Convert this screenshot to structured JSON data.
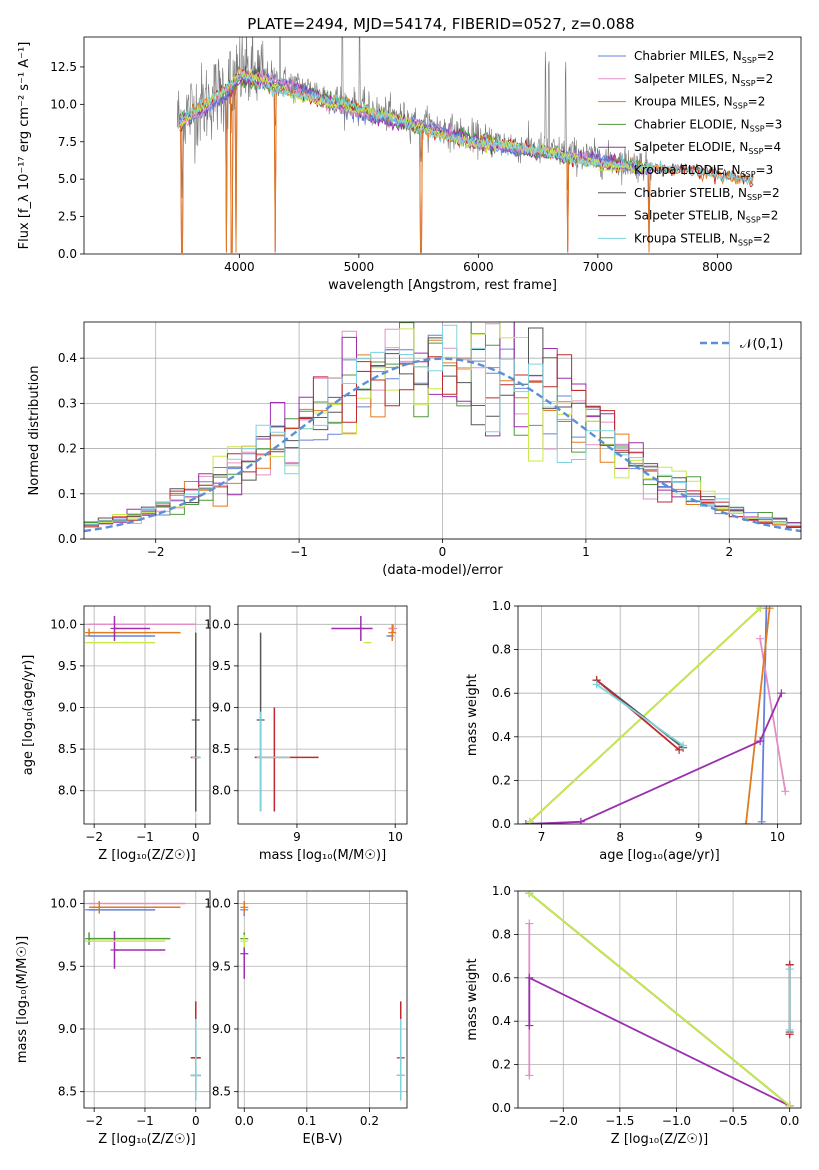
{
  "figure_title": "PLATE=2494, MJD=54174, FIBERID=0527, z=0.088",
  "models": [
    {
      "name": "Chabrier MILES",
      "nssp": "2",
      "color": "#6482db"
    },
    {
      "name": "Salpeter MILES",
      "nssp": "2",
      "color": "#e38fc5"
    },
    {
      "name": "Kroupa MILES",
      "nssp": "2",
      "color": "#e07b20"
    },
    {
      "name": "Chabrier ELODIE",
      "nssp": "3",
      "color": "#4f9a3f"
    },
    {
      "name": "Salpeter ELODIE",
      "nssp": "4",
      "color": "#9b2fae"
    },
    {
      "name": "Kroupa ELODIE",
      "nssp": "3",
      "color": "#c9e84a"
    },
    {
      "name": "Chabrier STELIB",
      "nssp": "2",
      "color": "#555555"
    },
    {
      "name": "Salpeter STELIB",
      "nssp": "2",
      "color": "#c0282d"
    },
    {
      "name": "Kroupa STELIB",
      "nssp": "2",
      "color": "#7ed3de"
    }
  ],
  "chart_data": [
    {
      "id": "spectrum",
      "type": "line",
      "xlabel": "wavelength [Angstrom, rest frame]",
      "ylabel": "Flux [f_λ 10⁻¹⁷ erg cm⁻² s⁻¹ A⁻¹]",
      "xlim": [
        2700,
        8700
      ],
      "ylim": [
        0,
        14.5
      ],
      "xticks": [
        4000,
        5000,
        6000,
        7000,
        8000
      ],
      "yticks": [
        0.0,
        2.5,
        5.0,
        7.5,
        10.0,
        12.5
      ],
      "grid": false,
      "legend": "upper-right",
      "continuum": [
        [
          3480,
          8.9
        ],
        [
          3600,
          9.6
        ],
        [
          3700,
          10.0
        ],
        [
          3800,
          10.6
        ],
        [
          3900,
          11.2
        ],
        [
          4000,
          12.2
        ],
        [
          4200,
          11.9
        ],
        [
          4500,
          11.2
        ],
        [
          4800,
          10.4
        ],
        [
          5000,
          9.8
        ],
        [
          5500,
          8.8
        ],
        [
          6000,
          7.7
        ],
        [
          6500,
          7.0
        ],
        [
          7000,
          6.4
        ],
        [
          7500,
          5.8
        ],
        [
          8000,
          5.5
        ],
        [
          8300,
          5.2
        ]
      ],
      "absorption_lines": [
        3520,
        3890,
        3935,
        3970,
        4300,
        5520,
        6750,
        7430
      ],
      "emission_lines": [
        4340,
        4861,
        5007,
        6563,
        6590,
        6730
      ]
    },
    {
      "id": "residuals",
      "type": "histogram",
      "xlabel": "(data-model)/error",
      "ylabel": "Normed distribution",
      "xlim": [
        -2.5,
        2.5
      ],
      "ylim": [
        0,
        0.48
      ],
      "xticks": [
        -2,
        -1,
        0,
        1,
        2
      ],
      "yticks": [
        0.0,
        0.1,
        0.2,
        0.3,
        0.4
      ],
      "grid": true,
      "legend": "upper-right",
      "reference_label": "𝒩(0,1)",
      "bin_width": 0.1
    },
    {
      "id": "age-vs-Z",
      "type": "errorbar",
      "xlabel": "Z [log₁₀(Z/Z☉)]",
      "ylabel": "age  [log₁₀(age/yr)]",
      "xlim": [
        -2.2,
        0.28
      ],
      "ylim": [
        7.6,
        10.22
      ],
      "xticks": [
        -2,
        -1,
        0
      ],
      "yticks": [
        8.0,
        8.5,
        9.0,
        9.5,
        10.0
      ],
      "grid": true,
      "points": [
        {
          "model": 0,
          "x": -2.1,
          "y": 9.86,
          "xerr": [
            0,
            1.3
          ],
          "yerr": [
            0,
            0
          ]
        },
        {
          "model": 1,
          "x": -2.1,
          "y": 10.0,
          "xerr": [
            0,
            2.1
          ],
          "yerr": [
            0,
            0
          ]
        },
        {
          "model": 2,
          "x": -2.1,
          "y": 9.9,
          "xerr": [
            0,
            1.8
          ],
          "yerr": [
            0.05,
            0.05
          ]
        },
        {
          "model": 4,
          "x": -1.6,
          "y": 9.95,
          "xerr": [
            0,
            0.7
          ],
          "yerr": [
            0.15,
            0.15
          ]
        },
        {
          "model": 5,
          "x": -2.1,
          "y": 9.78,
          "xerr": [
            0,
            1.3
          ],
          "yerr": [
            0,
            0
          ]
        },
        {
          "model": 6,
          "x": 0.0,
          "y": 8.85,
          "xerr": [
            0,
            0
          ],
          "yerr": [
            1.1,
            1.05
          ]
        },
        {
          "model": 7,
          "x": 0.0,
          "y": 8.4,
          "xerr": [
            0.1,
            0.05
          ],
          "yerr": [
            0,
            0
          ]
        },
        {
          "model": 8,
          "x": 0.0,
          "y": 8.4,
          "xerr": [
            0,
            0.1
          ],
          "yerr": [
            0,
            0
          ]
        }
      ]
    },
    {
      "id": "age-vs-mass",
      "type": "errorbar",
      "xlabel": "mass [log₁₀(M/M☉)]",
      "ylabel": "",
      "xlim": [
        8.4,
        10.12
      ],
      "ylim": [
        7.6,
        10.22
      ],
      "xticks": [
        9,
        10
      ],
      "yticks": [
        8.0,
        8.5,
        9.0,
        9.5,
        10.0
      ],
      "grid": true,
      "points": [
        {
          "model": 0,
          "x": 9.95,
          "y": 9.86,
          "xerr": [
            0.02,
            0.02
          ],
          "yerr": [
            0,
            0
          ]
        },
        {
          "model": 1,
          "x": 9.98,
          "y": 9.95,
          "xerr": [
            0.05,
            0.02
          ],
          "yerr": [
            0.05,
            0.05
          ]
        },
        {
          "model": 2,
          "x": 9.97,
          "y": 9.9,
          "xerr": [
            0.02,
            0.02
          ],
          "yerr": [
            0.1,
            0.1
          ]
        },
        {
          "model": 4,
          "x": 9.65,
          "y": 9.95,
          "xerr": [
            0.3,
            0.12
          ],
          "yerr": [
            0.15,
            0.15
          ]
        },
        {
          "model": 5,
          "x": 9.72,
          "y": 9.78,
          "xerr": [
            0.02,
            0.02
          ],
          "yerr": [
            0,
            0
          ]
        },
        {
          "model": 6,
          "x": 8.63,
          "y": 8.85,
          "xerr": [
            0,
            0
          ],
          "yerr": [
            1.1,
            1.05
          ]
        },
        {
          "model": 7,
          "x": 8.77,
          "y": 8.4,
          "xerr": [
            0.2,
            0.45
          ],
          "yerr": [
            0.65,
            0.6
          ]
        },
        {
          "model": 8,
          "x": 8.63,
          "y": 8.4,
          "xerr": [
            0,
            0.3
          ],
          "yerr": [
            0.65,
            0.55
          ]
        }
      ]
    },
    {
      "id": "weight-vs-age",
      "type": "line",
      "xlabel": "age  [log₁₀(age/yr)]",
      "ylabel": "mass weight",
      "xlim": [
        6.7,
        10.3
      ],
      "ylim": [
        0,
        1.0
      ],
      "xticks": [
        7,
        8,
        9,
        10
      ],
      "yticks": [
        0.0,
        0.2,
        0.4,
        0.6,
        0.8,
        1.0
      ],
      "grid": true,
      "series": [
        {
          "model": 0,
          "points": [
            [
              9.8,
              0.01
            ],
            [
              9.86,
              0.99
            ]
          ]
        },
        {
          "model": 1,
          "points": [
            [
              9.78,
              0.85
            ],
            [
              10.1,
              0.15
            ]
          ]
        },
        {
          "model": 2,
          "points": [
            [
              9.6,
              0.0
            ],
            [
              9.9,
              0.99
            ]
          ]
        },
        {
          "model": 3,
          "points": [
            [
              6.85,
              0.01
            ],
            [
              9.78,
              0.99
            ]
          ]
        },
        {
          "model": 4,
          "points": [
            [
              6.8,
              0.0
            ],
            [
              7.5,
              0.01
            ],
            [
              9.78,
              0.38
            ],
            [
              10.05,
              0.6
            ]
          ]
        },
        {
          "model": 5,
          "points": [
            [
              6.85,
              0.01
            ],
            [
              9.78,
              0.99
            ]
          ]
        },
        {
          "model": 6,
          "points": [
            [
              7.7,
              0.66
            ],
            [
              8.8,
              0.35
            ]
          ]
        },
        {
          "model": 7,
          "points": [
            [
              7.7,
              0.66
            ],
            [
              8.75,
              0.34
            ]
          ]
        },
        {
          "model": 8,
          "points": [
            [
              7.7,
              0.64
            ],
            [
              8.8,
              0.36
            ]
          ]
        }
      ]
    },
    {
      "id": "mass-vs-Z",
      "type": "errorbar",
      "xlabel": "Z [log₁₀(Z/Z☉)]",
      "ylabel": "mass [log₁₀(M/M☉)]",
      "xlim": [
        -2.2,
        0.28
      ],
      "ylim": [
        8.37,
        10.1
      ],
      "xticks": [
        -2,
        -1,
        0
      ],
      "yticks": [
        8.5,
        9.0,
        9.5,
        10.0
      ],
      "grid": true,
      "points": [
        {
          "model": 0,
          "x": -2.1,
          "y": 9.95,
          "xerr": [
            0,
            1.3
          ],
          "yerr": [
            0,
            0
          ]
        },
        {
          "model": 1,
          "x": -2.1,
          "y": 10.0,
          "xerr": [
            0,
            1.9
          ],
          "yerr": [
            0,
            0
          ]
        },
        {
          "model": 2,
          "x": -1.9,
          "y": 9.97,
          "xerr": [
            0.2,
            1.6
          ],
          "yerr": [
            0.05,
            0.05
          ]
        },
        {
          "model": 3,
          "x": -2.1,
          "y": 9.72,
          "xerr": [
            0,
            1.6
          ],
          "yerr": [
            0.05,
            0.05
          ]
        },
        {
          "model": 4,
          "x": -1.6,
          "y": 9.63,
          "xerr": [
            0,
            1.0
          ],
          "yerr": [
            0.15,
            0.15
          ]
        },
        {
          "model": 5,
          "x": -2.1,
          "y": 9.7,
          "xerr": [
            0,
            1.5
          ],
          "yerr": [
            0,
            0
          ]
        },
        {
          "model": 6,
          "x": 0.0,
          "y": 8.63,
          "xerr": [
            0.1,
            0.1
          ],
          "yerr": [
            0.2,
            0.3
          ]
        },
        {
          "model": 7,
          "x": 0.0,
          "y": 8.77,
          "xerr": [
            0.1,
            0.1
          ],
          "yerr": [
            0.3,
            0.45
          ]
        },
        {
          "model": 8,
          "x": 0.0,
          "y": 8.63,
          "xerr": [
            0.1,
            0.1
          ],
          "yerr": [
            0.2,
            0.45
          ]
        }
      ]
    },
    {
      "id": "mass-vs-EBV",
      "type": "errorbar",
      "xlabel": "E(B-V)",
      "ylabel": "",
      "xlim": [
        -0.01,
        0.26
      ],
      "ylim": [
        8.37,
        10.1
      ],
      "xticks": [
        0.0,
        0.1,
        0.2
      ],
      "yticks": [
        8.5,
        9.0,
        9.5,
        10.0
      ],
      "grid": true,
      "points": [
        {
          "model": 0,
          "x": 0.0,
          "y": 9.95,
          "xerr": [
            0,
            0
          ],
          "yerr": [
            0.05,
            0.05
          ]
        },
        {
          "model": 1,
          "x": 0.0,
          "y": 10.0,
          "xerr": [
            0,
            0
          ],
          "yerr": [
            0,
            0
          ]
        },
        {
          "model": 2,
          "x": 0.0,
          "y": 9.97,
          "xerr": [
            0,
            0
          ],
          "yerr": [
            0.05,
            0.05
          ]
        },
        {
          "model": 3,
          "x": 0.0,
          "y": 9.72,
          "xerr": [
            0,
            0
          ],
          "yerr": [
            0.05,
            0.05
          ]
        },
        {
          "model": 4,
          "x": 0.0,
          "y": 9.6,
          "xerr": [
            0,
            0
          ],
          "yerr": [
            0.2,
            0.15
          ]
        },
        {
          "model": 5,
          "x": 0.0,
          "y": 9.7,
          "xerr": [
            0,
            0
          ],
          "yerr": [
            0.05,
            0.05
          ]
        },
        {
          "model": 6,
          "x": 0.25,
          "y": 8.63,
          "xerr": [
            0,
            0
          ],
          "yerr": [
            0.2,
            0.2
          ]
        },
        {
          "model": 7,
          "x": 0.25,
          "y": 8.77,
          "xerr": [
            0,
            0
          ],
          "yerr": [
            0.3,
            0.45
          ]
        },
        {
          "model": 8,
          "x": 0.25,
          "y": 8.63,
          "xerr": [
            0,
            0
          ],
          "yerr": [
            0.2,
            0.45
          ]
        }
      ]
    },
    {
      "id": "weight-vs-Z",
      "type": "line",
      "xlabel": "Z [log₁₀(Z/Z☉)]",
      "ylabel": "mass weight",
      "xlim": [
        -2.4,
        0.1
      ],
      "ylim": [
        0,
        1.0
      ],
      "xticks": [
        -2.0,
        -1.5,
        -1.0,
        -0.5,
        0.0
      ],
      "yticks": [
        0.0,
        0.2,
        0.4,
        0.6,
        0.8,
        1.0
      ],
      "grid": true,
      "series": [
        {
          "model": 0,
          "points": [
            [
              -2.3,
              0.99
            ],
            [
              0.0,
              0.01
            ]
          ]
        },
        {
          "model": 1,
          "points": [
            [
              -2.3,
              0.85
            ],
            [
              -2.3,
              0.15
            ]
          ]
        },
        {
          "model": 3,
          "points": [
            [
              -2.3,
              0.99
            ],
            [
              0.0,
              0.01
            ]
          ]
        },
        {
          "model": 4,
          "points": [
            [
              -2.3,
              0.38
            ],
            [
              -2.3,
              0.6
            ],
            [
              0.0,
              0.01
            ]
          ]
        },
        {
          "model": 5,
          "points": [
            [
              -2.3,
              0.99
            ],
            [
              0.0,
              0.01
            ]
          ]
        },
        {
          "model": 6,
          "points": [
            [
              0.0,
              0.66
            ],
            [
              0.0,
              0.35
            ]
          ]
        },
        {
          "model": 7,
          "points": [
            [
              0.0,
              0.66
            ],
            [
              0.0,
              0.34
            ]
          ]
        },
        {
          "model": 8,
          "points": [
            [
              0.0,
              0.64
            ],
            [
              0.0,
              0.36
            ]
          ]
        }
      ]
    }
  ]
}
